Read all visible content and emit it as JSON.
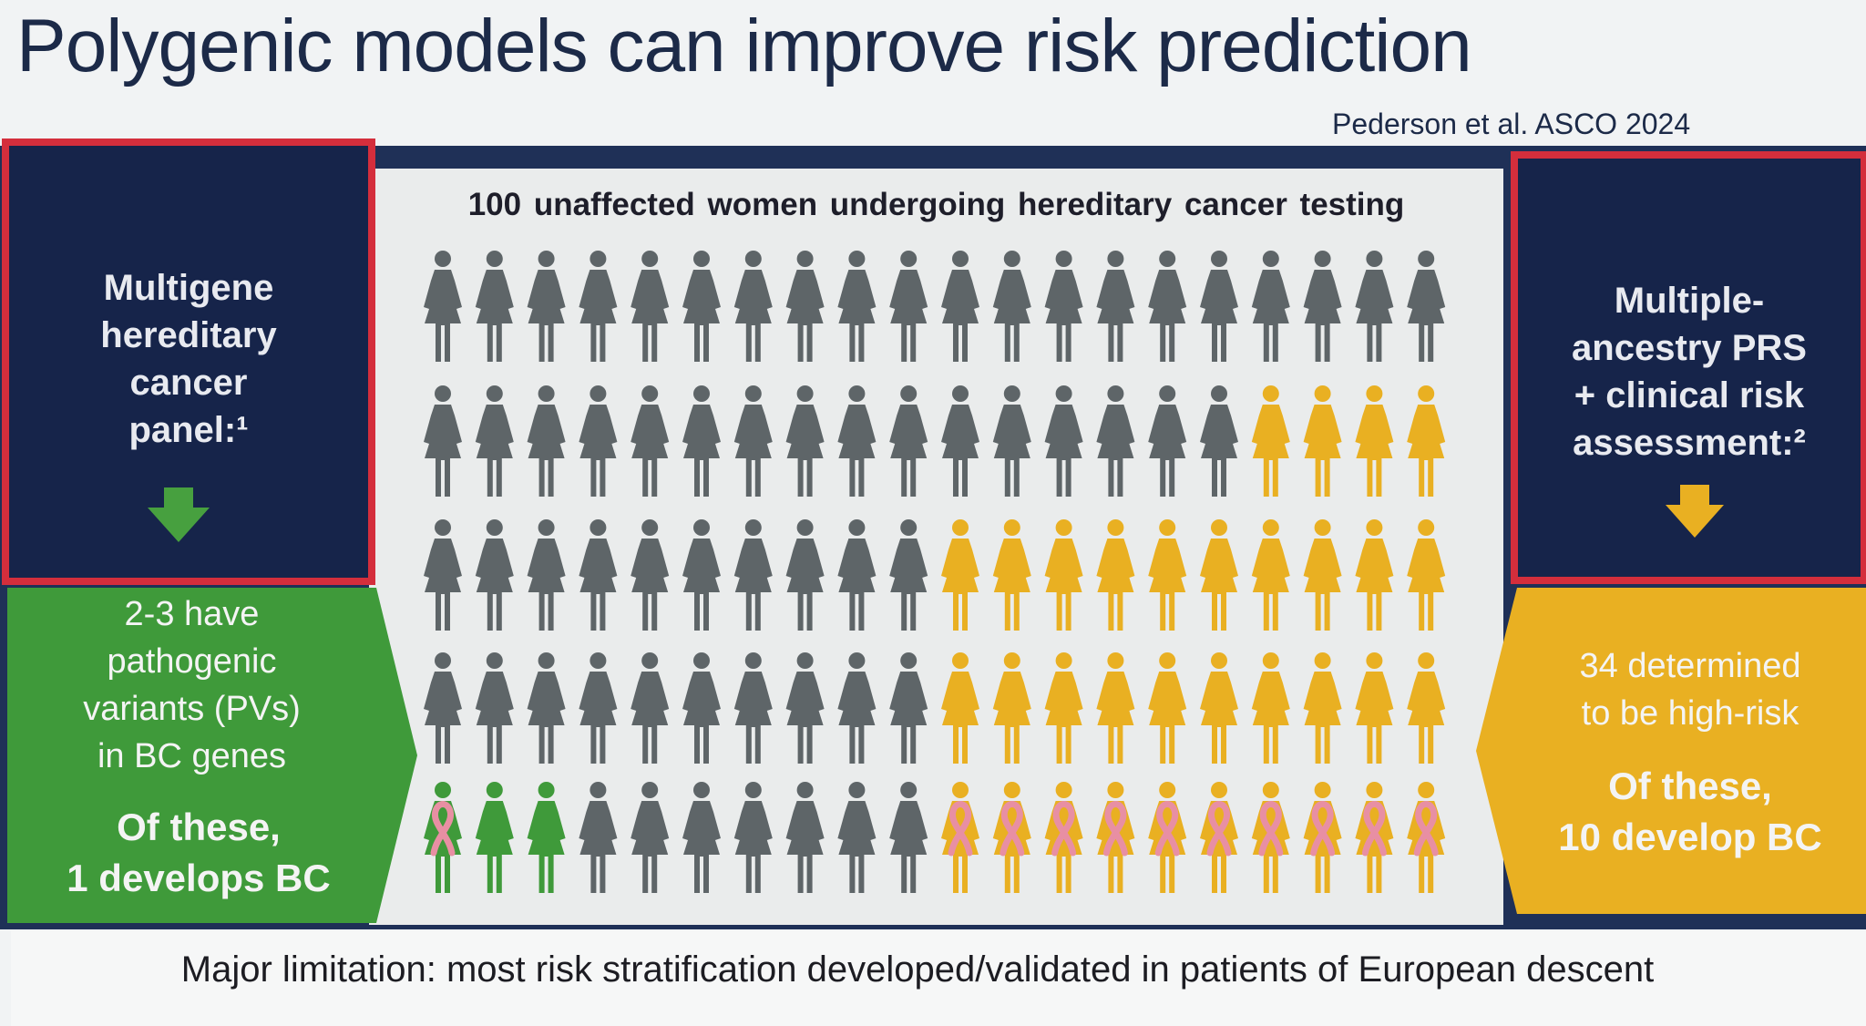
{
  "title": "Polygenic models can improve risk prediction",
  "citation": "Pederson et al. ASCO 2024",
  "left_box": {
    "heading_lines": [
      "Multigene",
      "hereditary",
      "cancer",
      "panel:¹"
    ],
    "result_lines": [
      "2-3 have",
      "pathogenic",
      "variants (PVs)",
      "in BC genes"
    ],
    "outcome_lines": [
      "Of these,",
      "1 develops BC"
    ]
  },
  "right_box": {
    "heading_lines": [
      "Multiple-",
      "ancestry PRS",
      "+ clinical risk",
      "assessment:²"
    ],
    "result_lines": [
      "34 determined",
      "to be high-risk"
    ],
    "outcome_lines": [
      "Of these,",
      "10 develop BC"
    ]
  },
  "grid": {
    "caption": "100 unaffected women undergoing hereditary cancer testing",
    "rows": 5,
    "cols": 20,
    "gray_count": 63,
    "high_risk_count": 34,
    "pv_count": 3,
    "pv_develop_bc": 1,
    "prs_develop_bc": 10
  },
  "colors": {
    "navy": "#16244a",
    "red_border": "#d42e3c",
    "green": "#3f9a3a",
    "yellow": "#e9b022",
    "gray_figure": "#5e6568",
    "ribbon": "#e88fa3"
  },
  "footer": {
    "limitation": "Major limitation: most risk stratification developed/validated in patients of European descent"
  }
}
